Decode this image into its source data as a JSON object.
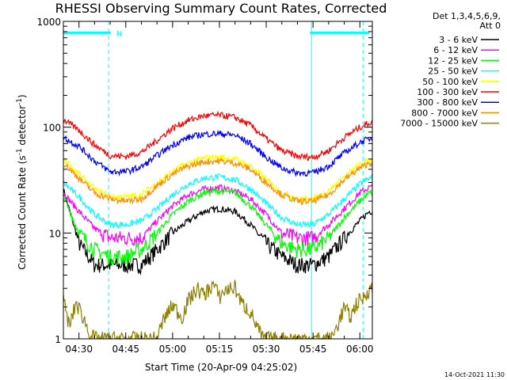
{
  "chart_data": {
    "type": "line",
    "title": "RHESSI Observing Summary Count Rates, Corrected",
    "xlabel": "Start Time (20-Apr-09 04:25:02)",
    "ylabel_main": "Corrected Count Rate (s",
    "ylabel_sup1": "-1",
    "ylabel_mid": " detector",
    "ylabel_sup2": "-1",
    "ylabel_end": ")",
    "xlim_min": [
      0,
      99
    ],
    "ylim": [
      1,
      1000
    ],
    "y_scale": "log",
    "x_ticks": [
      {
        "label": "04:30",
        "min": 5
      },
      {
        "label": "04:45",
        "min": 20
      },
      {
        "label": "05:00",
        "min": 35
      },
      {
        "label": "05:15",
        "min": 50
      },
      {
        "label": "05:30",
        "min": 65
      },
      {
        "label": "05:45",
        "min": 80
      },
      {
        "label": "06:00",
        "min": 95
      }
    ],
    "y_ticks": [
      {
        "label": "1",
        "value": 1
      },
      {
        "label": "10",
        "value": 10
      },
      {
        "label": "100",
        "value": 100
      },
      {
        "label": "1000",
        "value": 1000
      }
    ],
    "legend_header": [
      "Det 1,3,4,5,6,9,",
      "Att 0"
    ],
    "legend_position": "outside-right",
    "night_periods_min": [
      [
        -3,
        14.5
      ],
      [
        79.5,
        96
      ]
    ],
    "saa_label": "N",
    "saa_periods_min": [
      [
        0,
        15
      ],
      [
        79,
        98
      ]
    ],
    "saa_level": 780,
    "footer": "14-Oct-2021 11:30",
    "series": [
      {
        "name": "3 - 6 keV",
        "color": "#000000",
        "values": [
          [
            0,
            26
          ],
          [
            5,
            8
          ],
          [
            10,
            5
          ],
          [
            15,
            5
          ],
          [
            20,
            5
          ],
          [
            25,
            5
          ],
          [
            30,
            7
          ],
          [
            35,
            10
          ],
          [
            40,
            13
          ],
          [
            45,
            16
          ],
          [
            50,
            17
          ],
          [
            55,
            16
          ],
          [
            60,
            12
          ],
          [
            65,
            8
          ],
          [
            70,
            6
          ],
          [
            75,
            5
          ],
          [
            80,
            5
          ],
          [
            85,
            6
          ],
          [
            90,
            9
          ],
          [
            95,
            13
          ],
          [
            98,
            16
          ]
        ]
      },
      {
        "name": "6 - 12 keV",
        "color": "#ff00ff",
        "values": [
          [
            0,
            24
          ],
          [
            5,
            16
          ],
          [
            10,
            11
          ],
          [
            15,
            9
          ],
          [
            20,
            9
          ],
          [
            25,
            9
          ],
          [
            30,
            13
          ],
          [
            35,
            18
          ],
          [
            40,
            23
          ],
          [
            45,
            26
          ],
          [
            50,
            27
          ],
          [
            55,
            25
          ],
          [
            60,
            21
          ],
          [
            65,
            15
          ],
          [
            70,
            10
          ],
          [
            75,
            9
          ],
          [
            80,
            9
          ],
          [
            85,
            12
          ],
          [
            90,
            17
          ],
          [
            95,
            24
          ],
          [
            98,
            27
          ]
        ]
      },
      {
        "name": "12 - 25 keV",
        "color": "#00ff00",
        "values": [
          [
            0,
            22
          ],
          [
            5,
            10
          ],
          [
            10,
            7
          ],
          [
            15,
            6
          ],
          [
            20,
            6
          ],
          [
            25,
            7
          ],
          [
            30,
            10
          ],
          [
            35,
            15
          ],
          [
            40,
            20
          ],
          [
            45,
            24
          ],
          [
            50,
            25
          ],
          [
            55,
            24
          ],
          [
            60,
            18
          ],
          [
            65,
            12
          ],
          [
            70,
            8
          ],
          [
            75,
            7
          ],
          [
            80,
            7
          ],
          [
            85,
            9
          ],
          [
            90,
            14
          ],
          [
            95,
            20
          ],
          [
            98,
            24
          ]
        ]
      },
      {
        "name": "25 - 50 keV",
        "color": "#00ffff",
        "values": [
          [
            0,
            30
          ],
          [
            5,
            22
          ],
          [
            10,
            15
          ],
          [
            15,
            12
          ],
          [
            20,
            12
          ],
          [
            25,
            13
          ],
          [
            30,
            17
          ],
          [
            35,
            23
          ],
          [
            40,
            29
          ],
          [
            45,
            33
          ],
          [
            50,
            34
          ],
          [
            55,
            32
          ],
          [
            60,
            26
          ],
          [
            65,
            19
          ],
          [
            70,
            14
          ],
          [
            75,
            12
          ],
          [
            80,
            12
          ],
          [
            85,
            15
          ],
          [
            90,
            21
          ],
          [
            95,
            29
          ],
          [
            98,
            33
          ]
        ]
      },
      {
        "name": "50 - 100 keV",
        "color": "#ffff00",
        "values": [
          [
            0,
            50
          ],
          [
            5,
            36
          ],
          [
            10,
            26
          ],
          [
            15,
            22
          ],
          [
            20,
            22
          ],
          [
            25,
            23
          ],
          [
            30,
            30
          ],
          [
            35,
            38
          ],
          [
            40,
            46
          ],
          [
            45,
            51
          ],
          [
            50,
            52
          ],
          [
            55,
            50
          ],
          [
            60,
            43
          ],
          [
            65,
            32
          ],
          [
            70,
            24
          ],
          [
            75,
            21
          ],
          [
            80,
            21
          ],
          [
            85,
            25
          ],
          [
            90,
            34
          ],
          [
            95,
            44
          ],
          [
            98,
            49
          ]
        ]
      },
      {
        "name": "100 - 300 keV",
        "color": "#ff0000",
        "values": [
          [
            0,
            118
          ],
          [
            5,
            94
          ],
          [
            10,
            68
          ],
          [
            15,
            54
          ],
          [
            20,
            53
          ],
          [
            25,
            58
          ],
          [
            30,
            75
          ],
          [
            35,
            98
          ],
          [
            40,
            116
          ],
          [
            45,
            128
          ],
          [
            50,
            130
          ],
          [
            55,
            124
          ],
          [
            60,
            104
          ],
          [
            65,
            78
          ],
          [
            70,
            60
          ],
          [
            75,
            53
          ],
          [
            80,
            52
          ],
          [
            85,
            60
          ],
          [
            90,
            80
          ],
          [
            95,
            100
          ],
          [
            98,
            110
          ]
        ]
      },
      {
        "name": "300 - 800 keV",
        "color": "#0000ff",
        "values": [
          [
            0,
            80
          ],
          [
            5,
            66
          ],
          [
            10,
            48
          ],
          [
            15,
            38
          ],
          [
            20,
            38
          ],
          [
            25,
            42
          ],
          [
            30,
            54
          ],
          [
            35,
            68
          ],
          [
            40,
            80
          ],
          [
            45,
            86
          ],
          [
            50,
            87
          ],
          [
            55,
            84
          ],
          [
            60,
            70
          ],
          [
            65,
            52
          ],
          [
            70,
            41
          ],
          [
            75,
            37
          ],
          [
            80,
            37
          ],
          [
            85,
            43
          ],
          [
            90,
            57
          ],
          [
            95,
            72
          ],
          [
            98,
            78
          ]
        ]
      },
      {
        "name": "800 - 7000 keV",
        "color": "#ff8c00",
        "values": [
          [
            0,
            46
          ],
          [
            5,
            33
          ],
          [
            10,
            24
          ],
          [
            15,
            21
          ],
          [
            20,
            20
          ],
          [
            25,
            21
          ],
          [
            30,
            28
          ],
          [
            35,
            36
          ],
          [
            40,
            43
          ],
          [
            45,
            47
          ],
          [
            50,
            48
          ],
          [
            55,
            46
          ],
          [
            60,
            40
          ],
          [
            65,
            30
          ],
          [
            70,
            23
          ],
          [
            75,
            20
          ],
          [
            80,
            20
          ],
          [
            85,
            23
          ],
          [
            90,
            32
          ],
          [
            95,
            41
          ],
          [
            98,
            46
          ]
        ]
      },
      {
        "name": "7000 - 15000 keV",
        "color": "#8b8000",
        "values": [
          [
            0,
            2.3
          ],
          [
            2,
            1.3
          ],
          [
            4,
            2.2
          ],
          [
            6,
            1.7
          ],
          [
            8,
            1.2
          ],
          [
            10,
            1
          ],
          [
            30,
            1
          ],
          [
            32,
            1.5
          ],
          [
            35,
            2.1
          ],
          [
            38,
            1.6
          ],
          [
            40,
            2.3
          ],
          [
            43,
            3
          ],
          [
            45,
            2.6
          ],
          [
            48,
            3.3
          ],
          [
            50,
            2.5
          ],
          [
            52,
            2.9
          ],
          [
            55,
            3.1
          ],
          [
            57,
            2.2
          ],
          [
            60,
            1.8
          ],
          [
            62,
            1.3
          ],
          [
            64,
            1
          ],
          [
            86,
            1
          ],
          [
            88,
            1.4
          ],
          [
            90,
            2
          ],
          [
            92,
            1.6
          ],
          [
            94,
            2.2
          ],
          [
            96,
            2.4
          ],
          [
            98,
            3
          ]
        ]
      }
    ]
  }
}
